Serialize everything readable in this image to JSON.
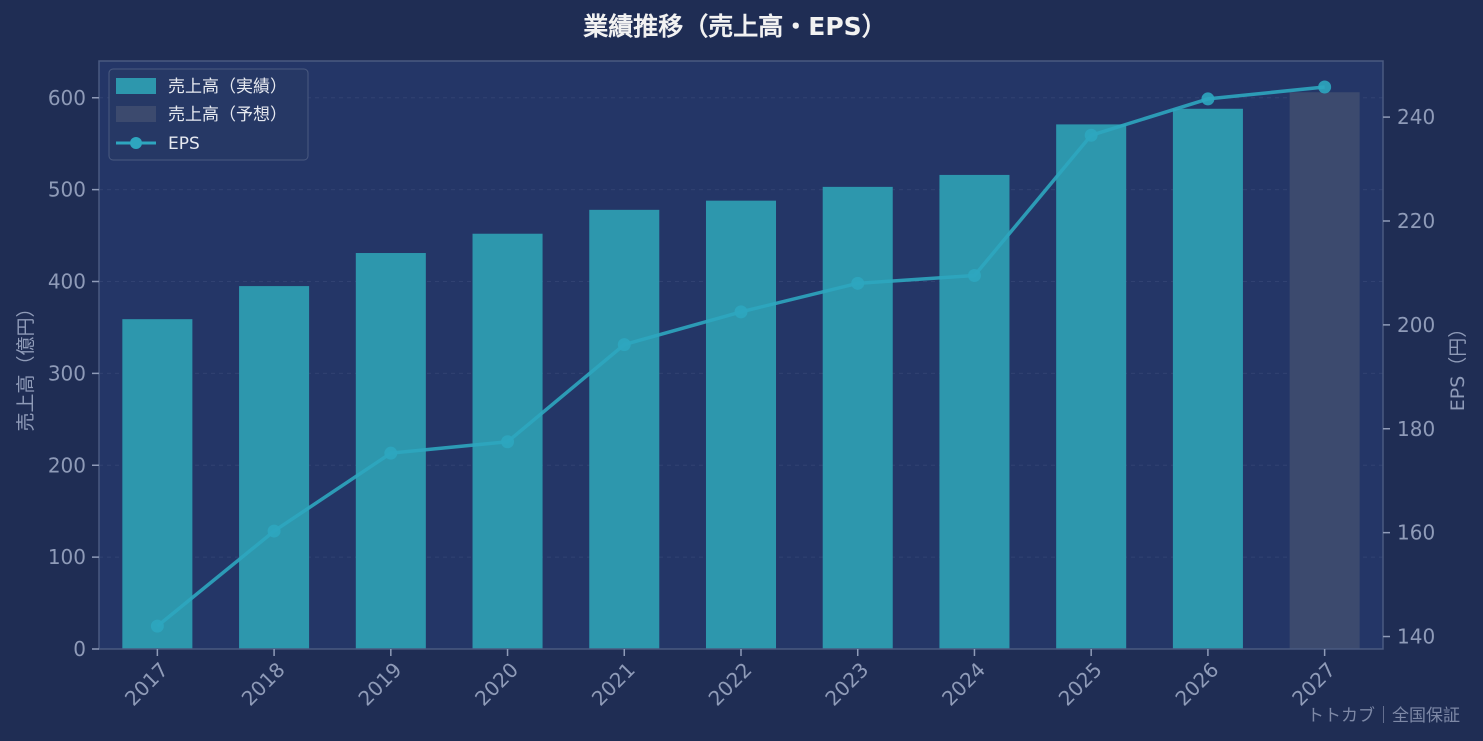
{
  "chart_data": {
    "type": "bar+line",
    "title": "業績推移（売上高・EPS）",
    "categories": [
      "2017",
      "2018",
      "2019",
      "2020",
      "2021",
      "2022",
      "2023",
      "2024",
      "2025",
      "2026",
      "2027"
    ],
    "series": [
      {
        "name": "売上高（実績）",
        "type": "bar",
        "axis": "left",
        "color": "#2d97ad",
        "values": [
          359,
          395,
          431,
          452,
          478,
          488,
          503,
          516,
          571,
          588,
          null
        ]
      },
      {
        "name": "売上高（予想）",
        "type": "bar",
        "axis": "left",
        "color": "#3c4a6e",
        "values": [
          null,
          null,
          null,
          null,
          null,
          null,
          null,
          null,
          null,
          null,
          606
        ]
      },
      {
        "name": "EPS",
        "type": "line",
        "axis": "right",
        "color": "#2ea6bf",
        "values": [
          142.0,
          160.3,
          175.3,
          177.5,
          196.2,
          202.5,
          208.0,
          209.5,
          236.5,
          243.5,
          245.8
        ]
      }
    ],
    "ylabel_left": "売上高（億円）",
    "ylabel_right": "EPS（円）",
    "ylim_left": [
      0,
      640
    ],
    "yticks_left": [
      0,
      100,
      200,
      300,
      400,
      500,
      600
    ],
    "ylim_right": [
      137.6,
      250.8
    ],
    "yticks_right": [
      140,
      160,
      180,
      200,
      220,
      240
    ],
    "grid": true,
    "legend_position": "top-left",
    "watermark": "トトカブ｜全国保証"
  },
  "colors": {
    "background": "#1f2d54",
    "plot_background": "#243667",
    "axis_text": "#8f9bb8",
    "title_text": "#f2f2f2",
    "legend_text": "#e6e9f0"
  }
}
